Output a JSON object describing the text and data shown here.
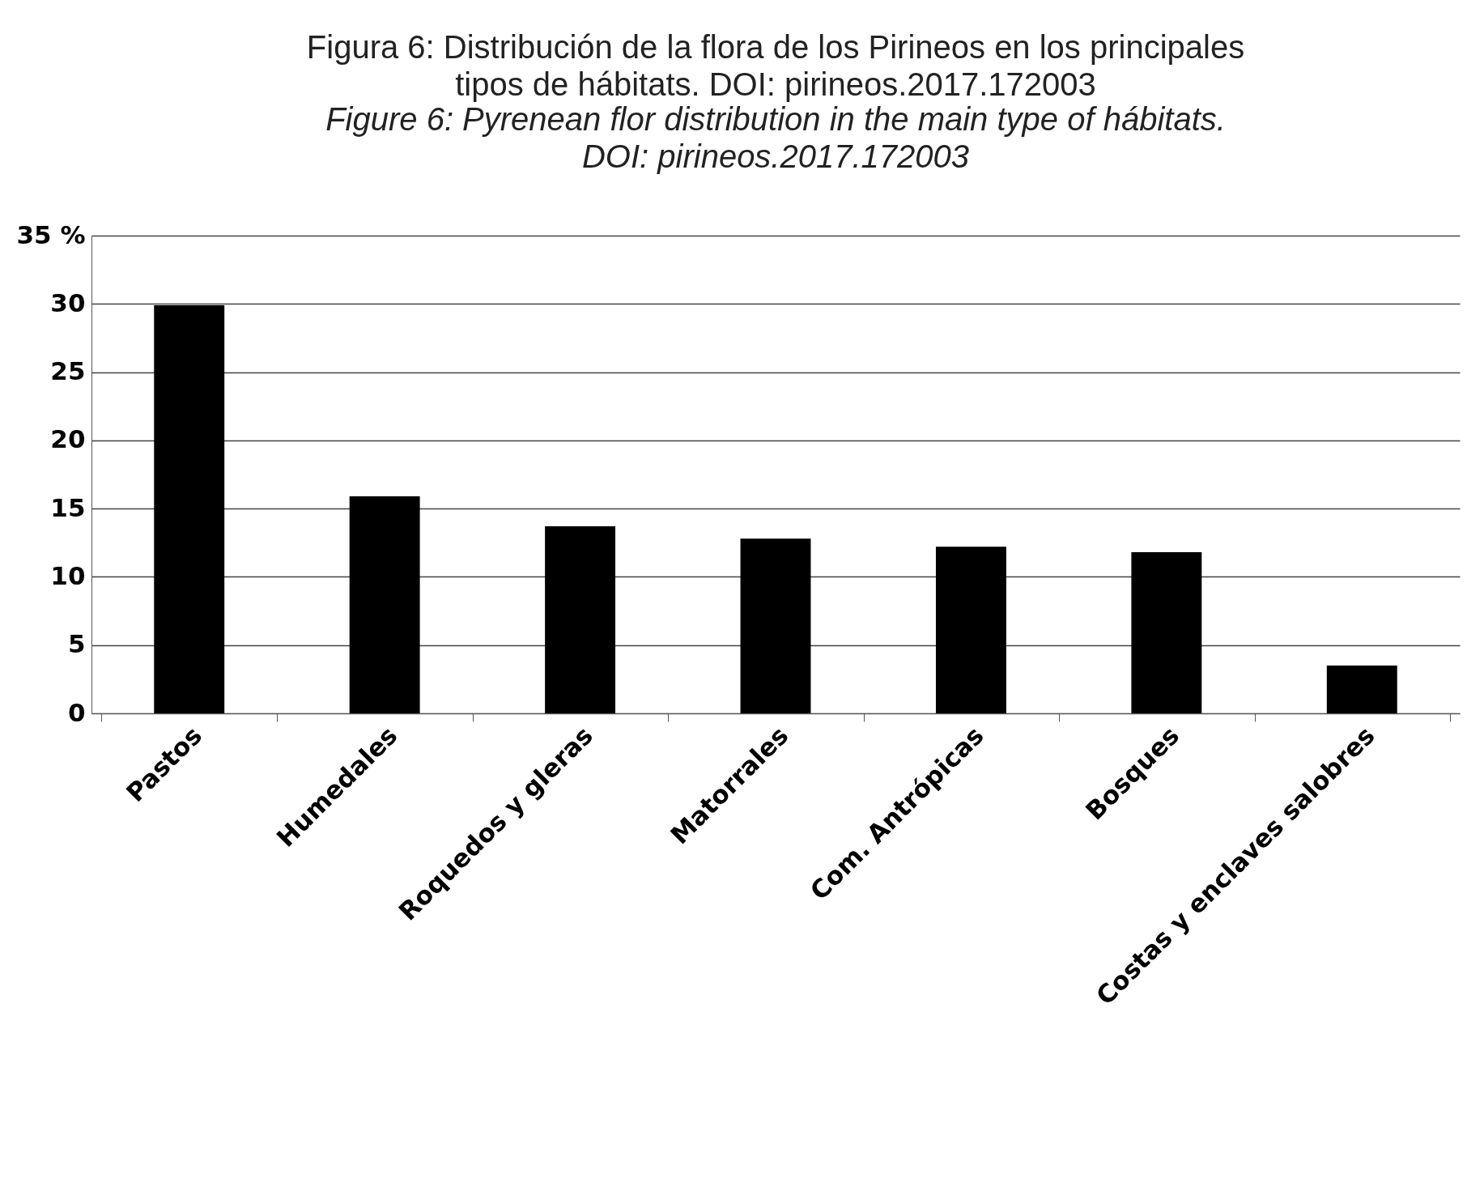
{
  "chart_data": {
    "type": "bar",
    "title": "Figura 6: Distribución de la flora de los Pirineos en los principales tipos de hábitats. DOI: pirineos.2017.172003",
    "subtitle": "Figure 6: Pyrenean flor distribution in the main type of hábitats. DOI: pirineos.2017.172003",
    "categories": [
      "Pastos",
      "Humedales",
      "Roquedos y gleras",
      "Matorrales",
      "Com. Antrópicas",
      "Bosques",
      "Costas y enclaves salobres"
    ],
    "values": [
      29.9,
      15.9,
      13.7,
      12.8,
      12.2,
      11.8,
      3.5
    ],
    "color": "#000000",
    "ylim": [
      0,
      35
    ],
    "yticks": [
      0,
      5,
      10,
      15,
      20,
      25,
      30,
      {
        "value": 35,
        "label": "35 %"
      }
    ],
    "grid": "y"
  }
}
